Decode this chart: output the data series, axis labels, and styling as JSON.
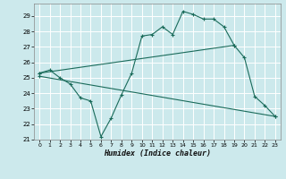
{
  "xlabel": "Humidex (Indice chaleur)",
  "bg_color": "#cce9ec",
  "grid_color": "#b0d4d8",
  "line_color": "#1a6b5a",
  "line1_x": [
    0,
    1,
    2,
    3,
    4,
    5,
    6,
    7,
    8,
    9,
    10,
    11,
    12,
    13,
    14,
    15,
    16,
    17,
    18,
    19,
    20,
    21,
    22,
    23
  ],
  "line1_y": [
    25.3,
    25.5,
    25.0,
    24.6,
    23.7,
    23.5,
    21.2,
    22.4,
    23.9,
    25.3,
    27.7,
    27.8,
    28.3,
    27.8,
    29.3,
    29.1,
    28.8,
    28.8,
    28.3,
    27.1,
    26.3,
    23.8,
    23.2,
    22.5
  ],
  "line2_x": [
    0,
    19
  ],
  "line2_y": [
    25.3,
    27.1
  ],
  "line3_x": [
    0,
    23
  ],
  "line3_y": [
    25.1,
    22.5
  ],
  "ylim": [
    21,
    29.8
  ],
  "xlim": [
    -0.5,
    23.5
  ],
  "yticks": [
    21,
    22,
    23,
    24,
    25,
    26,
    27,
    28,
    29
  ],
  "xticks": [
    0,
    1,
    2,
    3,
    4,
    5,
    6,
    7,
    8,
    9,
    10,
    11,
    12,
    13,
    14,
    15,
    16,
    17,
    18,
    19,
    20,
    21,
    22,
    23
  ]
}
